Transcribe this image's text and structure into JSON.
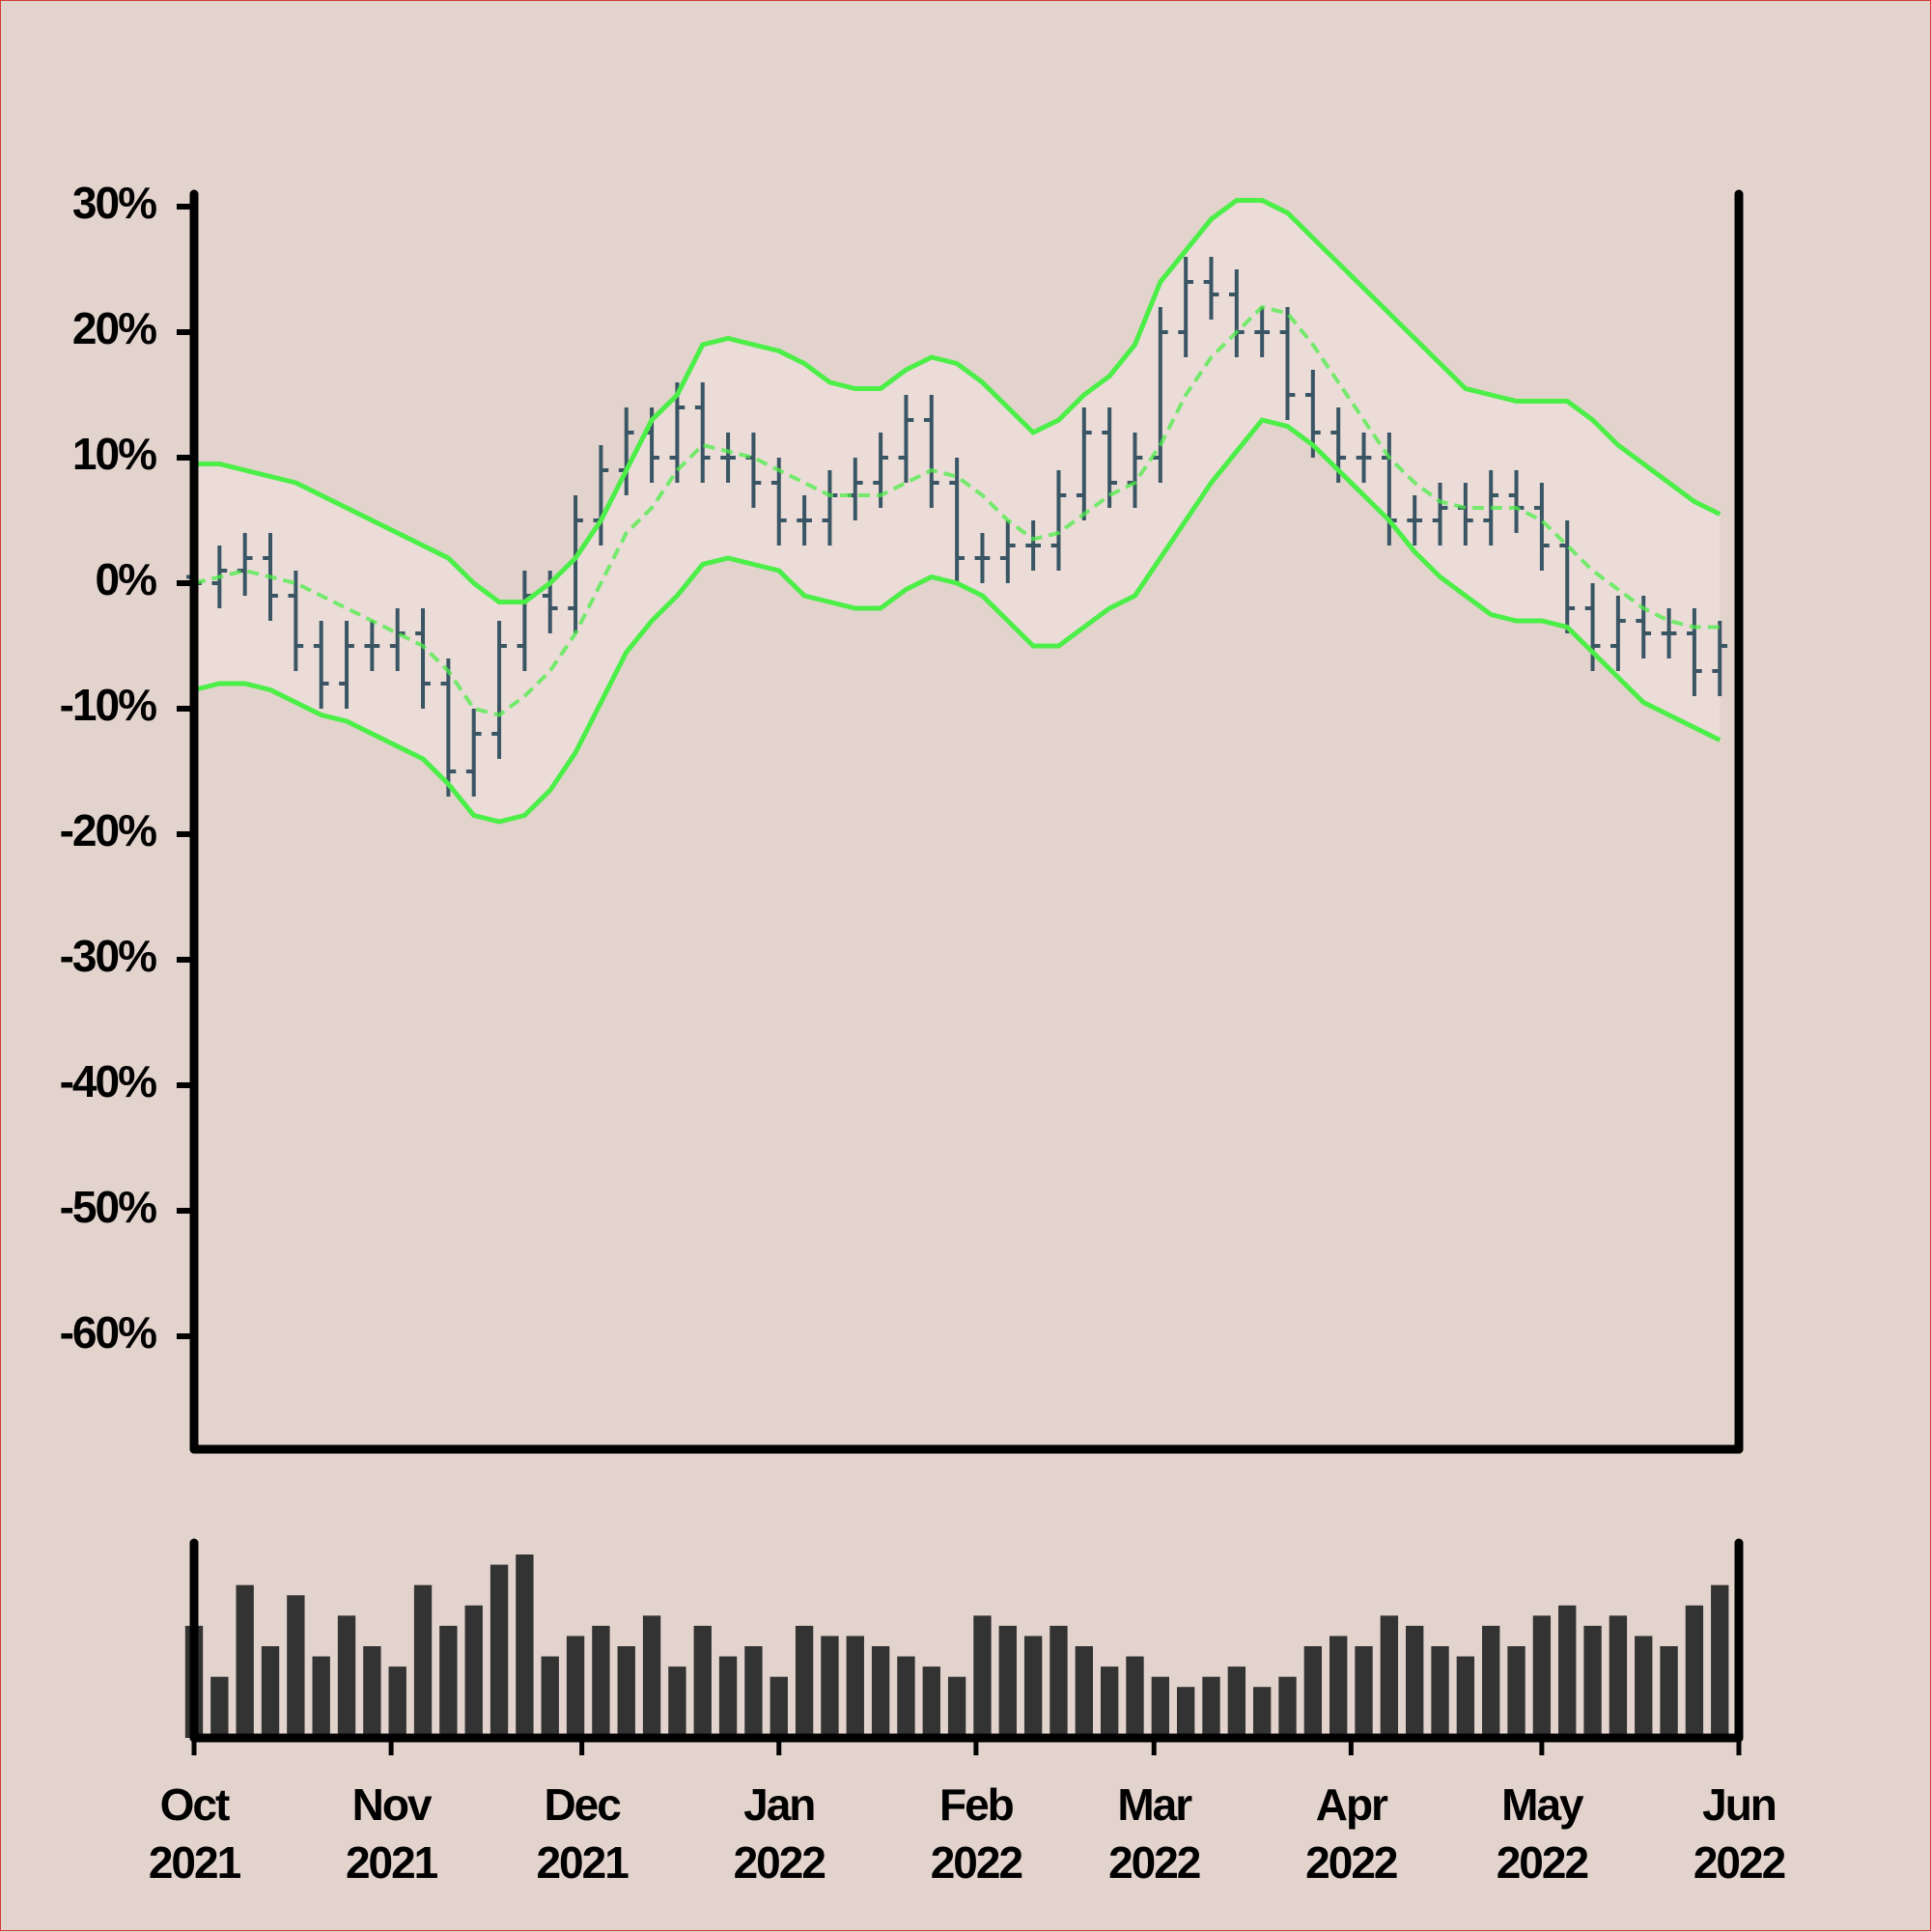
{
  "chart_data": {
    "type": "ohlc",
    "x": [
      0,
      4,
      8,
      12,
      16,
      20,
      24,
      28,
      32,
      36,
      40,
      44,
      48,
      52,
      56,
      60,
      64,
      68,
      72,
      76,
      80,
      84,
      88,
      92,
      96,
      100,
      104,
      108,
      112,
      116,
      120,
      124,
      128,
      132,
      136,
      140,
      144,
      148,
      152,
      156,
      160,
      164,
      168,
      172,
      176,
      180,
      184,
      188,
      192,
      196,
      200,
      204,
      208,
      212,
      216,
      220,
      224,
      228,
      232,
      236,
      240
    ],
    "xlim": [
      0,
      243
    ],
    "xticks": [
      {
        "value": 0,
        "label": "Oct\n2021"
      },
      {
        "value": 31,
        "label": "Nov\n2021"
      },
      {
        "value": 61,
        "label": "Dec\n2021"
      },
      {
        "value": 92,
        "label": "Jan\n2022"
      },
      {
        "value": 123,
        "label": "Feb\n2022"
      },
      {
        "value": 151,
        "label": "Mar\n2022"
      },
      {
        "value": 182,
        "label": "Apr\n2022"
      },
      {
        "value": 212,
        "label": "May\n2022"
      },
      {
        "value": 243,
        "label": "Jun\n2022"
      }
    ],
    "ylim": [
      -69,
      31
    ],
    "yticks": [
      {
        "value": 30,
        "label": "30%"
      },
      {
        "value": 20,
        "label": "20%"
      },
      {
        "value": 10,
        "label": "10%"
      },
      {
        "value": 0,
        "label": "0%"
      },
      {
        "value": -10,
        "label": "-10%"
      },
      {
        "value": -20,
        "label": "-20%"
      },
      {
        "value": -30,
        "label": "-30%"
      },
      {
        "value": -40,
        "label": "-40%"
      },
      {
        "value": -50,
        "label": "-50%"
      },
      {
        "value": -60,
        "label": "-60%"
      }
    ],
    "color": "#3a5563",
    "open": [
      0.5,
      0,
      1,
      2,
      -1,
      -5,
      -8,
      -5,
      -5,
      -4,
      -8,
      -15,
      -12,
      -5,
      -1,
      -2,
      5,
      9,
      12,
      10,
      14,
      10,
      10,
      8,
      5,
      5,
      7,
      8,
      10,
      13,
      8,
      2,
      2,
      3,
      3,
      7,
      12,
      8,
      10,
      20,
      24,
      23,
      20,
      20,
      15,
      12,
      10,
      10,
      5,
      5,
      6,
      5,
      7,
      6,
      3,
      -2,
      -5,
      -3,
      -4,
      -4,
      -7
    ],
    "high": [
      2.5,
      3,
      4,
      4,
      1,
      -3,
      -3,
      -3,
      -2,
      -2,
      -6,
      -10,
      -3,
      1,
      1,
      7,
      11,
      14,
      14,
      16,
      16,
      12,
      12,
      10,
      7,
      9,
      10,
      12,
      15,
      15,
      10,
      4,
      5,
      5,
      9,
      14,
      14,
      12,
      22,
      26,
      26,
      25,
      22,
      22,
      17,
      14,
      12,
      12,
      7,
      8,
      8,
      9,
      9,
      8,
      5,
      0,
      -1,
      -1,
      -2,
      -2,
      -3
    ],
    "low": [
      -2,
      -2,
      -1,
      -3,
      -7,
      -10,
      -10,
      -7,
      -7,
      -10,
      -17,
      -17,
      -14,
      -7,
      -4,
      -4,
      3,
      7,
      8,
      8,
      8,
      8,
      6,
      3,
      3,
      3,
      5,
      6,
      8,
      6,
      0,
      0,
      0,
      1,
      1,
      5,
      6,
      6,
      8,
      18,
      21,
      18,
      18,
      13,
      10,
      8,
      8,
      3,
      3,
      3,
      3,
      3,
      4,
      1,
      -4,
      -7,
      -7,
      -6,
      -6,
      -9,
      -9
    ],
    "close": [
      0,
      1,
      2,
      -1,
      -5,
      -8,
      -5,
      -5,
      -4,
      -8,
      -15,
      -12,
      -5,
      -1,
      -2,
      5,
      9,
      12,
      10,
      14,
      10,
      10,
      8,
      5,
      5,
      7,
      8,
      10,
      13,
      8,
      2,
      2,
      3,
      3,
      7,
      12,
      8,
      10,
      20,
      24,
      23,
      20,
      20,
      15,
      12,
      10,
      10,
      5,
      5,
      6,
      5,
      7,
      6,
      3,
      -2,
      -5,
      -3,
      -4,
      -4,
      -7,
      -5
    ],
    "bands": {
      "color": "#4cee48",
      "fill": "#ebdcd8",
      "upper": [
        9.5,
        9.5,
        9,
        8.5,
        8,
        7,
        6,
        5,
        4,
        3,
        2,
        0,
        -1.5,
        -1.5,
        0,
        2,
        5,
        9,
        13,
        15,
        19,
        19.5,
        19,
        18.5,
        17.5,
        16,
        15.5,
        15.5,
        17,
        18,
        17.5,
        16,
        14,
        12,
        13,
        15,
        16.5,
        19,
        24,
        26.5,
        29,
        30.5,
        30.5,
        29.5,
        27.5,
        25.5,
        23.5,
        21.5,
        19.5,
        17.5,
        15.5,
        15,
        14.5,
        14.5,
        14.5,
        13,
        11,
        9.5,
        8,
        6.5,
        5.5
      ],
      "middle": [
        0,
        0.5,
        1,
        0.5,
        0,
        -1,
        -2,
        -3,
        -4,
        -5,
        -7,
        -10,
        -10.5,
        -9,
        -7,
        -4,
        0,
        4,
        6,
        9,
        11,
        10.5,
        10,
        9,
        8,
        7,
        7,
        7,
        8,
        9,
        8.5,
        7,
        5,
        3.5,
        4,
        5.5,
        7,
        8,
        11,
        15,
        18,
        20,
        22,
        21.5,
        19,
        16,
        13,
        10,
        8,
        6.5,
        6,
        6,
        6,
        5,
        3,
        1,
        -0.5,
        -2,
        -3,
        -3.5,
        -3.5
      ],
      "lower": [
        -8.5,
        -8,
        -8,
        -8.5,
        -9.5,
        -10.5,
        -11,
        -12,
        -13,
        -14,
        -16,
        -18.5,
        -19,
        -18.5,
        -16.5,
        -13.5,
        -9.5,
        -5.5,
        -3,
        -1,
        1.5,
        2,
        1.5,
        1,
        -1,
        -1.5,
        -2,
        -2,
        -0.5,
        0.5,
        0,
        -1,
        -3,
        -5,
        -5,
        -3.5,
        -2,
        -1,
        2,
        5,
        8,
        10.5,
        13,
        12.5,
        11,
        9,
        7,
        5,
        2.5,
        0.5,
        -1,
        -2.5,
        -3,
        -3,
        -3.5,
        -5.5,
        -7.5,
        -9.5,
        -10.5,
        -11.5,
        -12.5
      ]
    },
    "volume": {
      "color": "#333333",
      "values": [
        55,
        30,
        75,
        45,
        70,
        40,
        60,
        45,
        35,
        75,
        55,
        65,
        85,
        90,
        40,
        50,
        55,
        45,
        60,
        35,
        55,
        40,
        45,
        30,
        55,
        50,
        50,
        45,
        40,
        35,
        30,
        60,
        55,
        50,
        55,
        45,
        35,
        40,
        30,
        25,
        30,
        35,
        25,
        30,
        45,
        50,
        45,
        60,
        55,
        45,
        40,
        55,
        45,
        60,
        65,
        55,
        60,
        50,
        45,
        65,
        75
      ]
    }
  }
}
